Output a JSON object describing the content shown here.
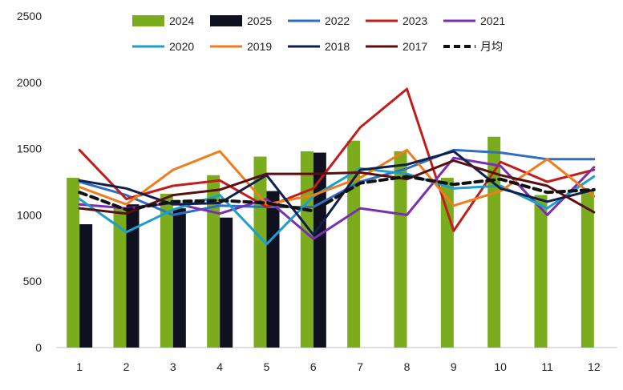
{
  "chart_data": {
    "type": "bar+line",
    "categories": [
      "1",
      "2",
      "3",
      "4",
      "5",
      "6",
      "7",
      "8",
      "9",
      "10",
      "11",
      "12"
    ],
    "ylim": [
      0,
      2500
    ],
    "yticks": [
      0,
      500,
      1000,
      1500,
      2000,
      2500
    ],
    "grid": false,
    "legend_position": "top",
    "bar_series": [
      {
        "name": "2024",
        "color": "#7aac1e",
        "values": [
          1280,
          1050,
          1160,
          1300,
          1440,
          1480,
          1560,
          1480,
          1280,
          1590,
          1150,
          1180
        ]
      },
      {
        "name": "2025",
        "color": "#0f1020",
        "values": [
          930,
          1080,
          1050,
          980,
          1180,
          1470,
          null,
          null,
          null,
          null,
          null,
          null
        ]
      }
    ],
    "line_series": [
      {
        "name": "2022",
        "color": "#2e6fc4",
        "dash": false,
        "values": [
          1250,
          1150,
          1000,
          1070,
          1060,
          1060,
          1250,
          1350,
          1490,
          1470,
          1420,
          1420
        ]
      },
      {
        "name": "2023",
        "color": "#c21c1c",
        "dash": false,
        "values": [
          1490,
          1120,
          1220,
          1260,
          1060,
          1200,
          1660,
          1950,
          880,
          1400,
          1250,
          1340
        ]
      },
      {
        "name": "2021",
        "color": "#7a2fb0",
        "dash": false,
        "values": [
          1080,
          1050,
          1090,
          1010,
          1120,
          820,
          1050,
          1000,
          1430,
          1370,
          1000,
          1360
        ]
      },
      {
        "name": "2020",
        "color": "#1e9ec8",
        "dash": false,
        "values": [
          1120,
          870,
          1040,
          1150,
          780,
          1140,
          1350,
          1310,
          1200,
          1220,
          1050,
          1290
        ]
      },
      {
        "name": "2019",
        "color": "#f07d1c",
        "dash": false,
        "values": [
          1210,
          1080,
          1340,
          1480,
          1080,
          1150,
          1280,
          1490,
          1070,
          1180,
          1420,
          1140
        ]
      },
      {
        "name": "2018",
        "color": "#0e1f4c",
        "dash": false,
        "values": [
          1260,
          1200,
          1080,
          1090,
          1300,
          850,
          1340,
          1380,
          1480,
          1200,
          1100,
          1190
        ]
      },
      {
        "name": "2017",
        "color": "#5a0f0f",
        "dash": false,
        "values": [
          1050,
          1010,
          1150,
          1190,
          1310,
          1310,
          1320,
          1270,
          1410,
          1300,
          1220,
          1020
        ]
      },
      {
        "name": "月均",
        "color": "#111111",
        "dash": true,
        "values": [
          1170,
          1040,
          1100,
          1110,
          1090,
          1030,
          1240,
          1290,
          1230,
          1270,
          1170,
          1190
        ]
      }
    ]
  }
}
